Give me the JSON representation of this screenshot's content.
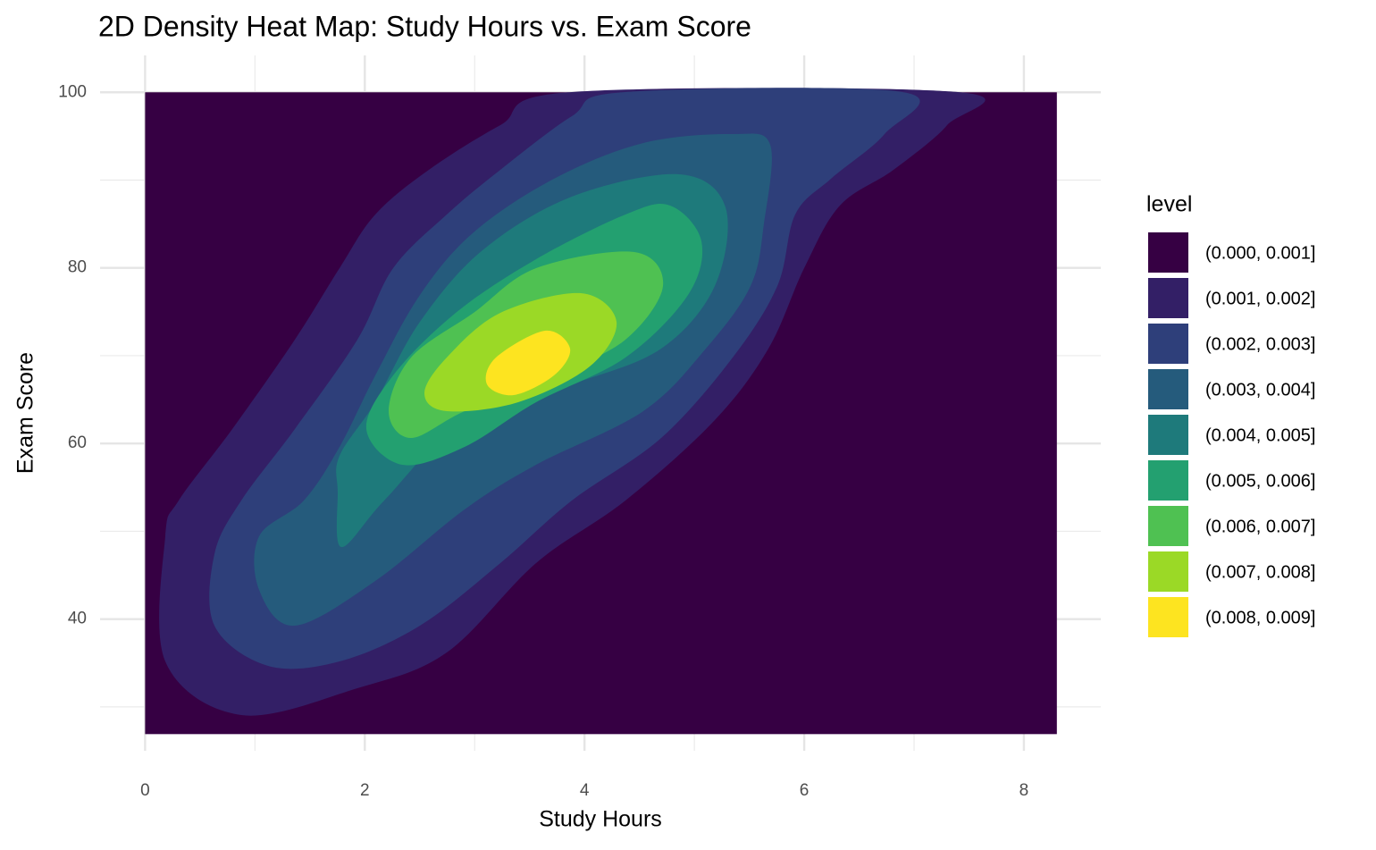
{
  "chart_data": {
    "type": "density_contour",
    "title": "2D Density Heat Map: Study Hours vs. Exam Score",
    "x_label": "Study Hours",
    "y_label": "Exam Score",
    "legend_title": "level",
    "xlim": [
      -0.41,
      8.7
    ],
    "ylim": [
      25,
      104.2
    ],
    "xticks": [
      0,
      2,
      4,
      6,
      8
    ],
    "yticks": [
      40,
      60,
      80,
      100
    ],
    "x_minor_ticks": [
      1,
      3,
      5,
      7
    ],
    "y_minor_ticks": [
      30,
      50,
      70,
      90
    ],
    "fill_xlim": [
      0,
      8.3
    ],
    "fill_ylim": [
      26.9,
      100
    ],
    "grid": true,
    "series": [
      {
        "name": "(0.000, 0.001]",
        "color": "#360043"
      },
      {
        "name": "(0.001, 0.002]",
        "color": "#331f66"
      },
      {
        "name": "(0.002, 0.003]",
        "color": "#2e3f7a"
      },
      {
        "name": "(0.003, 0.004]",
        "color": "#255b7c"
      },
      {
        "name": "(0.004, 0.005]",
        "color": "#1e7a7b"
      },
      {
        "name": "(0.005, 0.006]",
        "color": "#23a070"
      },
      {
        "name": "(0.006, 0.007]",
        "color": "#4fc152"
      },
      {
        "name": "(0.007, 0.008]",
        "color": "#9bd926"
      },
      {
        "name": "(0.008, 0.009]",
        "color": "#fde420"
      }
    ]
  }
}
